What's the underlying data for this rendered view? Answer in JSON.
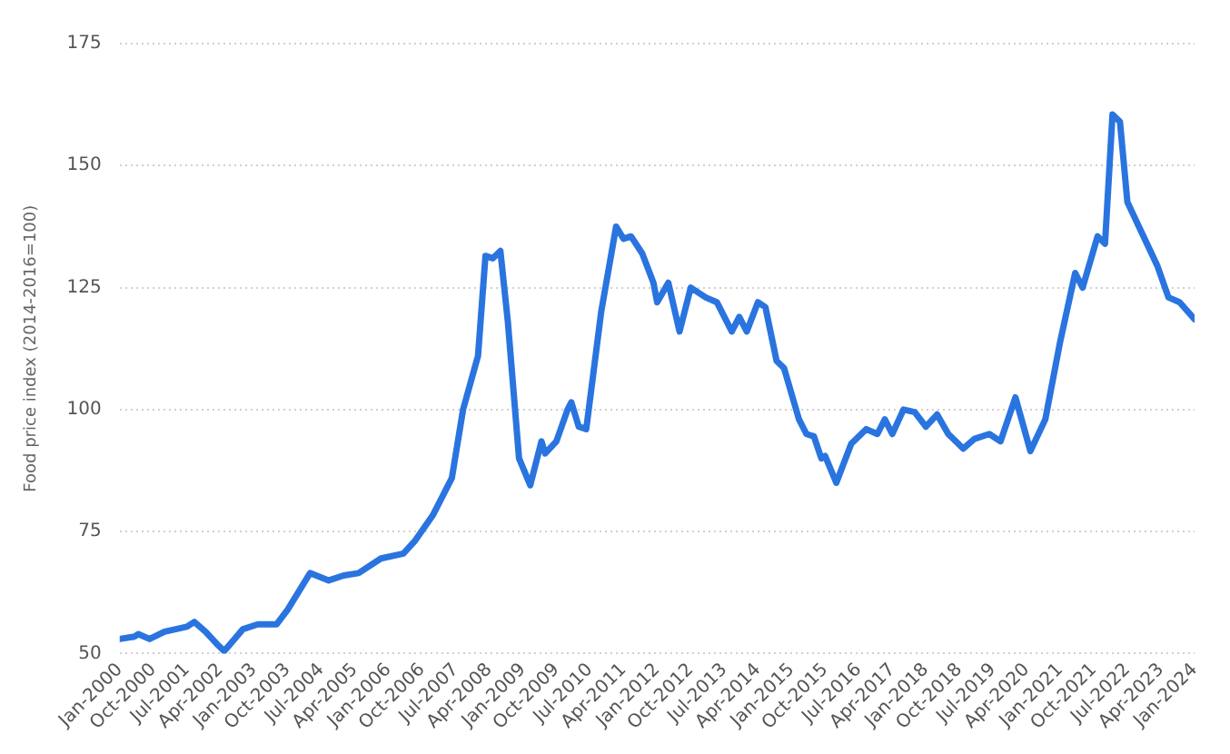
{
  "chart_data": {
    "type": "line",
    "ylabel": "Food price index (2014-2016=100)",
    "x": [
      "2000-01",
      "2000-05",
      "2000-06",
      "2000-09",
      "2001-01",
      "2001-07",
      "2001-09",
      "2001-12",
      "2002-03",
      "2002-05",
      "2002-10",
      "2003-02",
      "2003-07",
      "2003-10",
      "2004-04",
      "2004-09",
      "2005-01",
      "2005-05",
      "2005-11",
      "2006-05",
      "2006-08",
      "2007-01",
      "2007-06",
      "2007-09",
      "2008-01",
      "2008-03",
      "2008-05",
      "2008-07",
      "2008-09",
      "2008-12",
      "2009-03",
      "2009-06",
      "2009-07",
      "2009-10",
      "2010-01",
      "2010-02",
      "2010-04",
      "2010-06",
      "2010-10",
      "2011-02",
      "2011-04",
      "2011-06",
      "2011-09",
      "2011-12",
      "2012-01",
      "2012-04",
      "2012-07",
      "2012-10",
      "2013-02",
      "2013-05",
      "2013-09",
      "2013-11",
      "2014-01",
      "2014-04",
      "2014-06",
      "2014-09",
      "2014-11",
      "2015-03",
      "2015-05",
      "2015-07",
      "2015-09",
      "2015-10",
      "2016-01",
      "2016-05",
      "2016-09",
      "2016-12",
      "2017-02",
      "2017-04",
      "2017-07",
      "2017-10",
      "2018-01",
      "2018-04",
      "2018-07",
      "2018-11",
      "2019-02",
      "2019-06",
      "2019-09",
      "2020-01",
      "2020-05",
      "2020-09",
      "2021-01",
      "2021-05",
      "2021-07",
      "2021-11",
      "2022-01",
      "2022-03",
      "2022-05",
      "2022-07",
      "2022-11",
      "2023-03",
      "2023-06",
      "2023-09",
      "2024-01"
    ],
    "series": [
      {
        "color": "#2a74e0",
        "values": [
          53,
          53.5,
          54,
          53,
          54.5,
          55.5,
          56.5,
          54.5,
          52,
          50.5,
          55,
          56,
          56,
          59,
          66.5,
          65,
          66,
          66.5,
          69.5,
          70.5,
          73,
          78.5,
          86,
          100,
          111,
          131.5,
          131,
          132.5,
          118,
          90,
          84.5,
          93.5,
          91,
          93.5,
          100,
          101.5,
          96.5,
          96,
          120,
          137.5,
          135,
          135.5,
          132,
          126,
          122,
          126,
          116,
          125,
          123,
          122,
          116,
          119,
          116,
          122,
          121,
          110,
          108.5,
          98,
          95,
          94.5,
          90,
          90.5,
          85,
          93,
          96,
          95,
          98,
          95,
          100,
          99.5,
          96.5,
          99,
          95,
          92,
          94,
          95,
          93.5,
          102.5,
          91.5,
          98,
          114,
          128,
          125,
          135.5,
          134,
          160.5,
          159,
          142.5,
          136,
          129.5,
          123,
          122,
          118.5
        ]
      }
    ],
    "xlim": [
      "2000-01",
      "2024-01"
    ],
    "xticks": [
      {
        "value": "2000-01",
        "label": "Jan-2000"
      },
      {
        "value": "2000-10",
        "label": "Oct-2000"
      },
      {
        "value": "2001-07",
        "label": "Jul-2001"
      },
      {
        "value": "2002-04",
        "label": "Apr-2002"
      },
      {
        "value": "2003-01",
        "label": "Jan-2003"
      },
      {
        "value": "2003-10",
        "label": "Oct-2003"
      },
      {
        "value": "2004-07",
        "label": "Jul-2004"
      },
      {
        "value": "2005-04",
        "label": "Apr-2005"
      },
      {
        "value": "2006-01",
        "label": "Jan-2006"
      },
      {
        "value": "2006-10",
        "label": "Oct-2006"
      },
      {
        "value": "2007-07",
        "label": "Jul-2007"
      },
      {
        "value": "2008-04",
        "label": "Apr-2008"
      },
      {
        "value": "2009-01",
        "label": "Jan-2009"
      },
      {
        "value": "2009-10",
        "label": "Oct-2009"
      },
      {
        "value": "2010-07",
        "label": "Jul-2010"
      },
      {
        "value": "2011-04",
        "label": "Apr-2011"
      },
      {
        "value": "2012-01",
        "label": "Jan-2012"
      },
      {
        "value": "2012-10",
        "label": "Oct-2012"
      },
      {
        "value": "2013-07",
        "label": "Jul-2013"
      },
      {
        "value": "2014-04",
        "label": "Apr-2014"
      },
      {
        "value": "2015-01",
        "label": "Jan-2015"
      },
      {
        "value": "2015-10",
        "label": "Oct-2015"
      },
      {
        "value": "2016-07",
        "label": "Jul-2016"
      },
      {
        "value": "2017-04",
        "label": "Apr-2017"
      },
      {
        "value": "2018-01",
        "label": "Jan-2018"
      },
      {
        "value": "2018-10",
        "label": "Oct-2018"
      },
      {
        "value": "2019-07",
        "label": "Jul-2019"
      },
      {
        "value": "2020-04",
        "label": "Apr-2020"
      },
      {
        "value": "2021-01",
        "label": "Jan-2021"
      },
      {
        "value": "2021-10",
        "label": "Oct-2021"
      },
      {
        "value": "2022-07",
        "label": "Jul-2022"
      },
      {
        "value": "2023-04",
        "label": "Apr-2023"
      },
      {
        "value": "2024-01",
        "label": "Jan-2024"
      }
    ],
    "ylim": [
      50,
      175
    ],
    "yticks": [
      50,
      75,
      100,
      125,
      150,
      175
    ],
    "grid": "y",
    "legend": false,
    "marker": "none",
    "line_style": "solid"
  }
}
